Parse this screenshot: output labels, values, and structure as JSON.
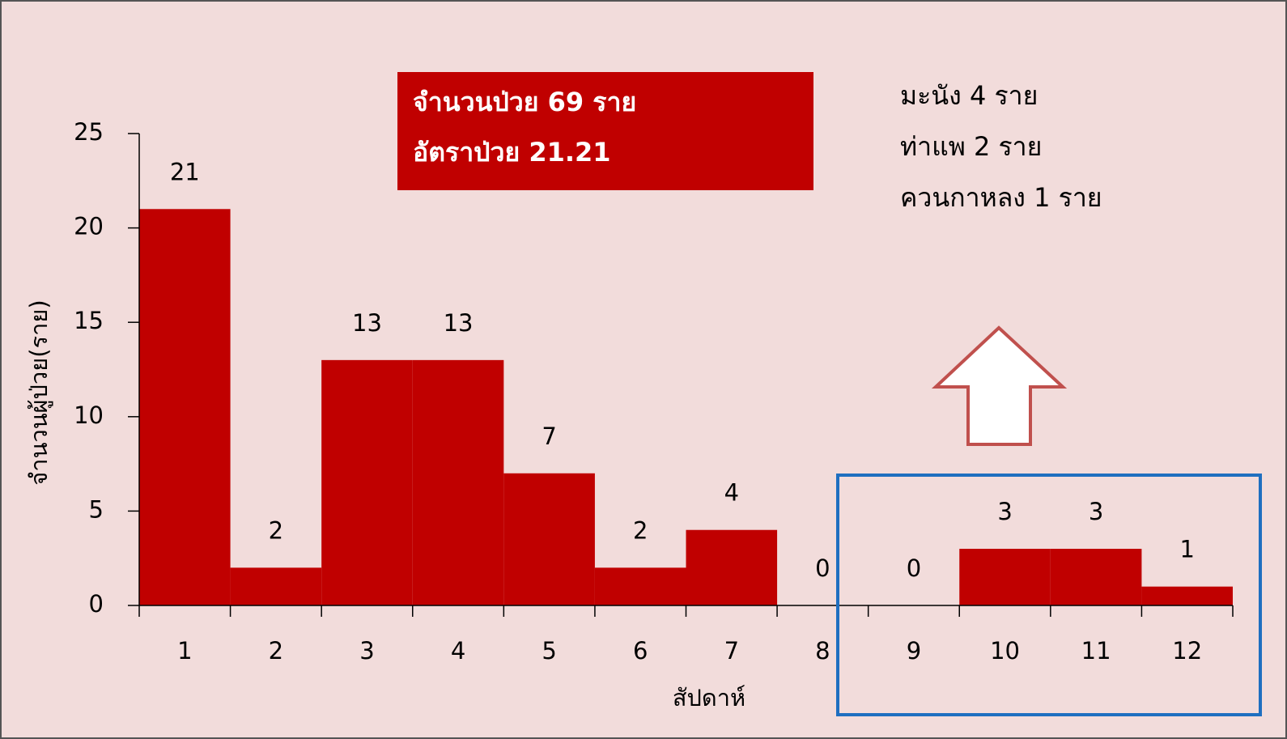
{
  "chart_data": {
    "type": "bar",
    "x_label": "สัปดาห์",
    "y_label": "จำนวนผู้ป่วย(ราย)",
    "categories": [
      "1",
      "2",
      "3",
      "4",
      "5",
      "6",
      "7",
      "8",
      "9",
      "10",
      "11",
      "12"
    ],
    "values": [
      21,
      2,
      13,
      13,
      7,
      2,
      4,
      0,
      0,
      3,
      3,
      1
    ],
    "color": "#c00000",
    "ylim": [
      0,
      25
    ],
    "yticks": [
      0,
      5,
      10,
      15,
      20,
      25
    ],
    "summary": [
      "จำนวนป่วย 69 ราย",
      "อัตราป่วย 21.21"
    ],
    "notes": [
      "มะนัง  4  ราย",
      "ท่าแพ  2  ราย",
      "ควนกาหลง  1 ราย"
    ]
  }
}
